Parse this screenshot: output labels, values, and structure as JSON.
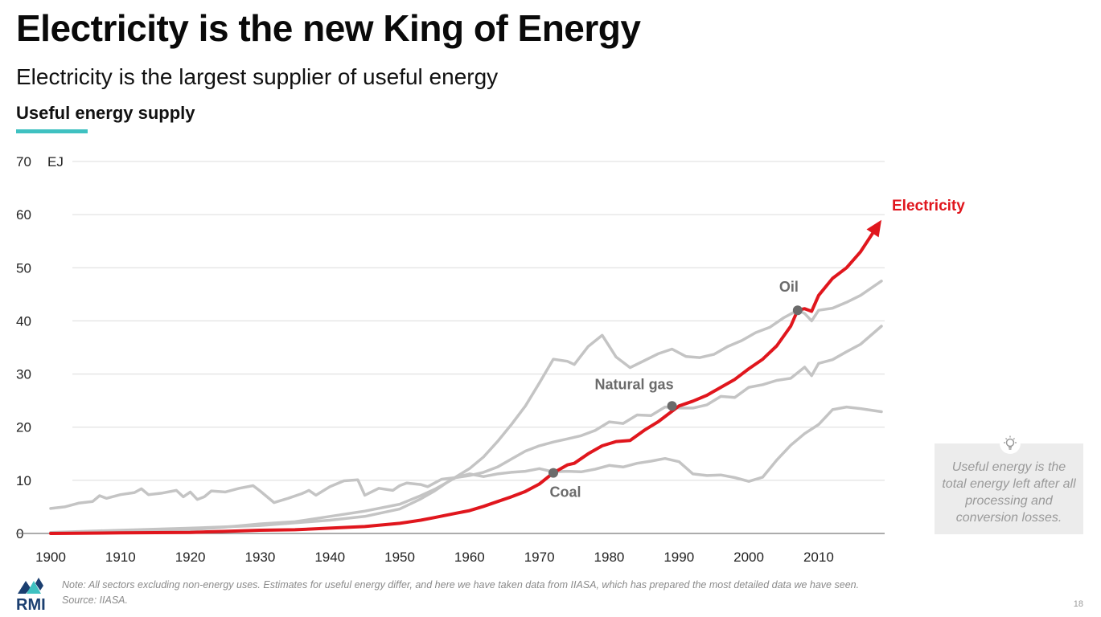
{
  "header": {
    "title": "Electricity is the new King of Energy",
    "subtitle": "Electricity is the largest supplier of useful energy",
    "chart_heading": "Useful energy supply"
  },
  "info_box": {
    "icon": "lightbulb-icon",
    "text": "Useful energy is the total energy left after all processing and conversion losses."
  },
  "footer": {
    "note": "Note: All sectors excluding non-energy uses. Estimates for useful energy differ, and here we have taken data from IIASA, which has prepared the most detailed data we have seen.",
    "source": "Source: IIASA.",
    "logo_text": "RMI",
    "page_number": "18"
  },
  "colors": {
    "electricity": "#e0161d",
    "other_fuels": "#c4c4c4",
    "marker": "#6b6b6b",
    "accent": "#3fc1c1",
    "logo_blue": "#1b3f70",
    "logo_teal": "#3fc1c1"
  },
  "chart_data": {
    "type": "line",
    "unit_label": "EJ",
    "ylim": [
      0,
      70
    ],
    "xlim": [
      1900,
      2019
    ],
    "yticks": [
      0,
      10,
      20,
      30,
      40,
      50,
      60,
      70
    ],
    "xticks": [
      1900,
      1910,
      1920,
      1930,
      1940,
      1950,
      1960,
      1970,
      1980,
      1990,
      2000,
      2010
    ],
    "grid": true,
    "series": [
      {
        "name": "Coal",
        "highlight": false,
        "points": [
          [
            1900,
            4.7
          ],
          [
            1902,
            5
          ],
          [
            1904,
            5.7
          ],
          [
            1906,
            6
          ],
          [
            1907,
            7.1
          ],
          [
            1908,
            6.6
          ],
          [
            1910,
            7.3
          ],
          [
            1912,
            7.7
          ],
          [
            1913,
            8.4
          ],
          [
            1914,
            7.3
          ],
          [
            1916,
            7.6
          ],
          [
            1918,
            8.1
          ],
          [
            1919,
            6.9
          ],
          [
            1920,
            7.8
          ],
          [
            1921,
            6.4
          ],
          [
            1922,
            6.9
          ],
          [
            1923,
            8
          ],
          [
            1925,
            7.8
          ],
          [
            1927,
            8.5
          ],
          [
            1929,
            9
          ],
          [
            1930,
            8
          ],
          [
            1932,
            5.8
          ],
          [
            1934,
            6.6
          ],
          [
            1936,
            7.5
          ],
          [
            1937,
            8.1
          ],
          [
            1938,
            7.2
          ],
          [
            1940,
            8.8
          ],
          [
            1942,
            9.9
          ],
          [
            1944,
            10.1
          ],
          [
            1945,
            7.2
          ],
          [
            1947,
            8.5
          ],
          [
            1949,
            8.1
          ],
          [
            1950,
            9
          ],
          [
            1951,
            9.5
          ],
          [
            1953,
            9.2
          ],
          [
            1954,
            8.8
          ],
          [
            1956,
            10.2
          ],
          [
            1958,
            10.5
          ],
          [
            1960,
            11.2
          ],
          [
            1962,
            10.7
          ],
          [
            1964,
            11.2
          ],
          [
            1966,
            11.5
          ],
          [
            1968,
            11.7
          ],
          [
            1970,
            12.2
          ],
          [
            1972,
            11.6
          ],
          [
            1974,
            11.7
          ],
          [
            1976,
            11.6
          ],
          [
            1978,
            12.1
          ],
          [
            1980,
            12.8
          ],
          [
            1982,
            12.5
          ],
          [
            1984,
            13.2
          ],
          [
            1986,
            13.6
          ],
          [
            1988,
            14.1
          ],
          [
            1990,
            13.5
          ],
          [
            1992,
            11.2
          ],
          [
            1994,
            10.9
          ],
          [
            1996,
            11
          ],
          [
            1998,
            10.5
          ],
          [
            2000,
            9.8
          ],
          [
            2002,
            10.6
          ],
          [
            2004,
            13.8
          ],
          [
            2006,
            16.6
          ],
          [
            2008,
            18.8
          ],
          [
            2010,
            20.5
          ],
          [
            2012,
            23.3
          ],
          [
            2014,
            23.8
          ],
          [
            2016,
            23.5
          ],
          [
            2019,
            22.9
          ]
        ]
      },
      {
        "name": "Natural gas",
        "highlight": false,
        "points": [
          [
            1900,
            0.1
          ],
          [
            1910,
            0.4
          ],
          [
            1920,
            0.7
          ],
          [
            1925,
            1.2
          ],
          [
            1930,
            1.8
          ],
          [
            1935,
            2.2
          ],
          [
            1940,
            3.2
          ],
          [
            1945,
            4.2
          ],
          [
            1950,
            5.5
          ],
          [
            1953,
            7.1
          ],
          [
            1955,
            8.3
          ],
          [
            1958,
            10.5
          ],
          [
            1960,
            10.9
          ],
          [
            1962,
            11.5
          ],
          [
            1964,
            12.5
          ],
          [
            1966,
            14
          ],
          [
            1968,
            15.5
          ],
          [
            1970,
            16.5
          ],
          [
            1972,
            17.2
          ],
          [
            1974,
            17.8
          ],
          [
            1976,
            18.4
          ],
          [
            1978,
            19.4
          ],
          [
            1980,
            21
          ],
          [
            1982,
            20.7
          ],
          [
            1984,
            22.3
          ],
          [
            1986,
            22.2
          ],
          [
            1988,
            23.8
          ],
          [
            1990,
            23.6
          ],
          [
            1992,
            23.6
          ],
          [
            1994,
            24.2
          ],
          [
            1996,
            25.8
          ],
          [
            1998,
            25.6
          ],
          [
            2000,
            27.5
          ],
          [
            2002,
            28
          ],
          [
            2004,
            28.8
          ],
          [
            2006,
            29.2
          ],
          [
            2008,
            31.3
          ],
          [
            2009,
            29.7
          ],
          [
            2010,
            32
          ],
          [
            2012,
            32.7
          ],
          [
            2014,
            34.2
          ],
          [
            2016,
            35.6
          ],
          [
            2019,
            39
          ]
        ]
      },
      {
        "name": "Oil",
        "highlight": false,
        "points": [
          [
            1900,
            0.2
          ],
          [
            1910,
            0.6
          ],
          [
            1920,
            1
          ],
          [
            1930,
            1.5
          ],
          [
            1940,
            2.5
          ],
          [
            1945,
            3.2
          ],
          [
            1950,
            4.6
          ],
          [
            1953,
            6.5
          ],
          [
            1955,
            8
          ],
          [
            1957,
            9.8
          ],
          [
            1960,
            12.2
          ],
          [
            1962,
            14.4
          ],
          [
            1964,
            17.3
          ],
          [
            1966,
            20.5
          ],
          [
            1968,
            24
          ],
          [
            1970,
            28.3
          ],
          [
            1972,
            32.8
          ],
          [
            1974,
            32.4
          ],
          [
            1975,
            31.8
          ],
          [
            1977,
            35.2
          ],
          [
            1979,
            37.3
          ],
          [
            1981,
            33.2
          ],
          [
            1983,
            31.2
          ],
          [
            1985,
            32.5
          ],
          [
            1987,
            33.8
          ],
          [
            1989,
            34.7
          ],
          [
            1991,
            33.3
          ],
          [
            1993,
            33.1
          ],
          [
            1995,
            33.7
          ],
          [
            1997,
            35.2
          ],
          [
            1999,
            36.3
          ],
          [
            2001,
            37.8
          ],
          [
            2003,
            38.8
          ],
          [
            2005,
            40.6
          ],
          [
            2007,
            42
          ],
          [
            2008,
            41.4
          ],
          [
            2009,
            40
          ],
          [
            2010,
            42
          ],
          [
            2012,
            42.4
          ],
          [
            2014,
            43.5
          ],
          [
            2016,
            44.8
          ],
          [
            2019,
            47.5
          ]
        ]
      },
      {
        "name": "Electricity",
        "highlight": true,
        "points": [
          [
            1900,
            0
          ],
          [
            1910,
            0.1
          ],
          [
            1920,
            0.2
          ],
          [
            1925,
            0.4
          ],
          [
            1930,
            0.6
          ],
          [
            1935,
            0.7
          ],
          [
            1940,
            1
          ],
          [
            1945,
            1.3
          ],
          [
            1950,
            1.9
          ],
          [
            1953,
            2.5
          ],
          [
            1955,
            3
          ],
          [
            1958,
            3.8
          ],
          [
            1960,
            4.3
          ],
          [
            1962,
            5.1
          ],
          [
            1964,
            6
          ],
          [
            1966,
            6.9
          ],
          [
            1968,
            7.9
          ],
          [
            1970,
            9.3
          ],
          [
            1972,
            11.4
          ],
          [
            1974,
            12.9
          ],
          [
            1975,
            13.2
          ],
          [
            1977,
            15
          ],
          [
            1979,
            16.5
          ],
          [
            1981,
            17.3
          ],
          [
            1983,
            17.5
          ],
          [
            1985,
            19.4
          ],
          [
            1987,
            21
          ],
          [
            1989,
            23
          ],
          [
            1990,
            24
          ],
          [
            1992,
            24.9
          ],
          [
            1994,
            26
          ],
          [
            1996,
            27.5
          ],
          [
            1998,
            29
          ],
          [
            2000,
            31
          ],
          [
            2002,
            32.8
          ],
          [
            2004,
            35.3
          ],
          [
            2006,
            39
          ],
          [
            2007,
            42
          ],
          [
            2008,
            42.3
          ],
          [
            2009,
            41.8
          ],
          [
            2010,
            44.8
          ],
          [
            2012,
            48
          ],
          [
            2014,
            50
          ],
          [
            2016,
            53
          ],
          [
            2019,
            59
          ]
        ]
      }
    ],
    "annotations": [
      {
        "label": "Coal",
        "x": 1972,
        "y": 11.4
      },
      {
        "label": "Natural gas",
        "x": 1989,
        "y": 24
      },
      {
        "label": "Oil",
        "x": 2007,
        "y": 42
      }
    ]
  }
}
